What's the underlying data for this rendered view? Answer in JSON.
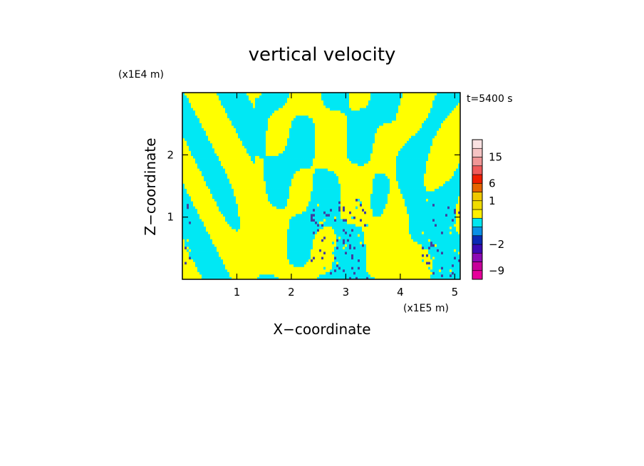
{
  "chart_data": {
    "type": "heatmap",
    "title": "vertical velocity",
    "time_label": "t=5400 s",
    "xlabel": "X−coordinate",
    "ylabel": "Z−coordinate",
    "x_unit": "(x1E5 m)",
    "y_unit": "(x1E4 m)",
    "xlim": [
      0,
      5.1
    ],
    "ylim": [
      0,
      3.0
    ],
    "x_ticks": [
      1,
      2,
      3,
      4,
      5
    ],
    "y_ticks": [
      1,
      2
    ],
    "colorbar": {
      "tick_labels": [
        "15",
        "6",
        "1",
        "−2",
        "−9"
      ],
      "tick_values": [
        15,
        6,
        1,
        -2,
        -9
      ],
      "levels": [
        -12,
        -9,
        -6,
        -3,
        -2,
        -1,
        -0.5,
        0,
        0.5,
        1,
        3,
        6,
        9,
        12,
        15,
        18,
        21
      ],
      "colors": [
        "#e6009a",
        "#c8009a",
        "#8c0ab4",
        "#3c0ab4",
        "#0a2ab4",
        "#0a90e6",
        "#00e6f0",
        "#fff000",
        "#f0dc00",
        "#f0c800",
        "#e66400",
        "#f01e00",
        "#f05a5a",
        "#f09696",
        "#f5c3c3",
        "#fae1e1"
      ]
    },
    "field": {
      "description_values": "up=yellow (positive), down=cyan (negative)",
      "positive_color": "#ffff00",
      "negative_color": "#00e8f4",
      "noise_color": "#4040a0"
    }
  }
}
